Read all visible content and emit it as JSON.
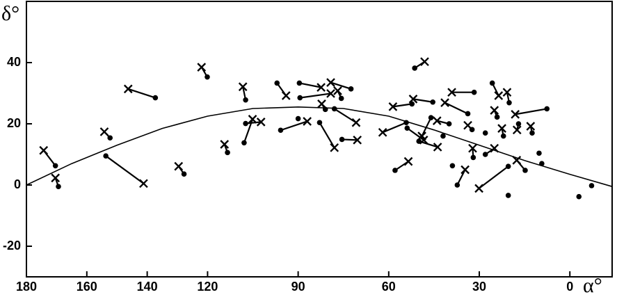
{
  "chart_data": {
    "type": "scatter",
    "x_label": "α°",
    "y_label": "δ°",
    "xlim": [
      180,
      -14
    ],
    "ylim": [
      -30,
      60
    ],
    "xticks": [
      180,
      160,
      140,
      120,
      90,
      60,
      30,
      0
    ],
    "yticks": [
      -20,
      0,
      20,
      40
    ],
    "color": "#000000",
    "pairs": [
      {
        "dot": [
          170.4,
          6.3
        ],
        "cross": [
          174.3,
          11.3
        ]
      },
      {
        "dot": [
          169.4,
          -0.5
        ],
        "cross": [
          170.4,
          2.3
        ]
      },
      {
        "dot": [
          152.3,
          15.4
        ],
        "cross": [
          154.2,
          17.4
        ]
      },
      {
        "dot": [
          137.3,
          28.5
        ],
        "cross": [
          146.3,
          31.4
        ]
      },
      {
        "dot": [
          153.7,
          9.5
        ],
        "cross": [
          141.2,
          0.5
        ]
      },
      {
        "dot": [
          127.8,
          3.6
        ],
        "cross": [
          129.6,
          6.1
        ]
      },
      {
        "dot": [
          120.1,
          35.3
        ],
        "cross": [
          122.0,
          38.5
        ]
      },
      {
        "dot": [
          113.4,
          10.6
        ],
        "cross": [
          114.4,
          13.3
        ]
      },
      {
        "dot": [
          107.4,
          27.8
        ],
        "cross": [
          108.3,
          32.1
        ]
      },
      {
        "dot": [
          107.9,
          13.8
        ],
        "cross": [
          105.1,
          21.5
        ]
      },
      {
        "dot": [
          107.4,
          20.1
        ],
        "cross": [
          102.3,
          20.6
        ]
      },
      {
        "dot": [
          97.0,
          33.3
        ],
        "cross": [
          94.0,
          29.2
        ]
      },
      {
        "dot": [
          95.8,
          17.9
        ],
        "cross": [
          87.0,
          20.8
        ]
      },
      {
        "dot": [
          89.6,
          33.3
        ],
        "cross": [
          82.4,
          31.9
        ]
      },
      {
        "dot": [
          89.4,
          28.5
        ],
        "cross": [
          79.2,
          29.9
        ]
      },
      {
        "dot": [
          72.5,
          31.4
        ],
        "cross": [
          79.2,
          33.5
        ]
      },
      {
        "dot": [
          81.0,
          24.7
        ],
        "cross": [
          82.2,
          26.5
        ]
      },
      {
        "dot": [
          82.9,
          20.4
        ],
        "cross": [
          78.0,
          12.2
        ]
      },
      {
        "dot": [
          75.7,
          28.3
        ],
        "cross": [
          76.9,
          30.8
        ]
      },
      {
        "dot": [
          78.0,
          24.9
        ],
        "cross": [
          70.8,
          20.4
        ]
      },
      {
        "dot": [
          75.5,
          14.9
        ],
        "cross": [
          70.4,
          14.7
        ]
      },
      {
        "dot": [
          54.2,
          20.4
        ],
        "cross": [
          62.0,
          17.2
        ]
      },
      {
        "dot": [
          57.9,
          4.8
        ],
        "cross": [
          53.5,
          7.7
        ]
      },
      {
        "dot": [
          51.4,
          38.2
        ],
        "cross": [
          48.1,
          40.3
        ]
      },
      {
        "dot": [
          52.3,
          26.5
        ],
        "cross": [
          58.6,
          25.6
        ]
      },
      {
        "dot": [
          45.4,
          27.1
        ],
        "cross": [
          51.9,
          28.1
        ]
      },
      {
        "dot": [
          31.7,
          30.3
        ],
        "cross": [
          39.1,
          30.3
        ]
      },
      {
        "dot": [
          33.8,
          23.3
        ],
        "cross": [
          41.4,
          26.9
        ]
      },
      {
        "dot": [
          32.4,
          18.1
        ],
        "cross": [
          33.8,
          19.5
        ]
      },
      {
        "dot": [
          50.0,
          14.3
        ],
        "cross": [
          43.8,
          12.4
        ]
      },
      {
        "dot": [
          53.9,
          18.6
        ],
        "cross": [
          48.4,
          14.7
        ]
      },
      {
        "dot": [
          46.0,
          22.0
        ],
        "cross": [
          49.0,
          16.0
        ]
      },
      {
        "dot": [
          37.3,
          0.0
        ],
        "cross": [
          34.7,
          5.0
        ]
      },
      {
        "dot": [
          20.4,
          6.1
        ],
        "cross": [
          30.1,
          -1.1
        ]
      },
      {
        "dot": [
          32.0,
          9.0
        ],
        "cross": [
          32.2,
          12.0
        ]
      },
      {
        "dot": [
          25.7,
          33.3
        ],
        "cross": [
          23.6,
          29.2
        ]
      },
      {
        "dot": [
          24.1,
          22.2
        ],
        "cross": [
          25.0,
          24.4
        ]
      },
      {
        "dot": [
          7.6,
          24.9
        ],
        "cross": [
          18.1,
          23.1
        ]
      },
      {
        "dot": [
          20.1,
          26.9
        ],
        "cross": [
          20.8,
          30.3
        ]
      },
      {
        "dot": [
          17.0,
          20.0
        ],
        "cross": [
          17.5,
          18.0
        ]
      },
      {
        "dot": [
          12.5,
          17.0
        ],
        "cross": [
          13.0,
          19.2
        ]
      },
      {
        "dot": [
          14.8,
          4.8
        ],
        "cross": [
          17.6,
          8.1
        ]
      },
      {
        "dot": [
          28.0,
          10.0
        ],
        "cross": [
          25.0,
          12.0
        ]
      },
      {
        "dot": [
          22.0,
          16.0
        ],
        "cross": [
          22.5,
          18.5
        ]
      },
      {
        "dot": [
          40.0,
          20.0
        ],
        "cross": [
          44.0,
          21.0
        ]
      }
    ],
    "lone_dots": [
      [
        90.0,
        21.7
      ],
      [
        20.4,
        -3.4
      ],
      [
        -3.0,
        -3.8
      ],
      [
        -7.2,
        -0.2
      ],
      [
        9.3,
        7.0
      ],
      [
        10.2,
        10.4
      ],
      [
        38.9,
        6.3
      ],
      [
        42.0,
        16.0
      ],
      [
        28.0,
        17.0
      ]
    ],
    "curve": {
      "x": [
        180,
        165,
        150,
        135,
        120,
        105,
        90,
        75,
        60,
        45,
        30,
        15,
        0,
        -14
      ],
      "values": [
        0,
        7,
        13,
        18.5,
        22.5,
        25,
        25.5,
        25,
        22.5,
        18,
        13,
        8,
        3.5,
        -0.5
      ]
    }
  }
}
